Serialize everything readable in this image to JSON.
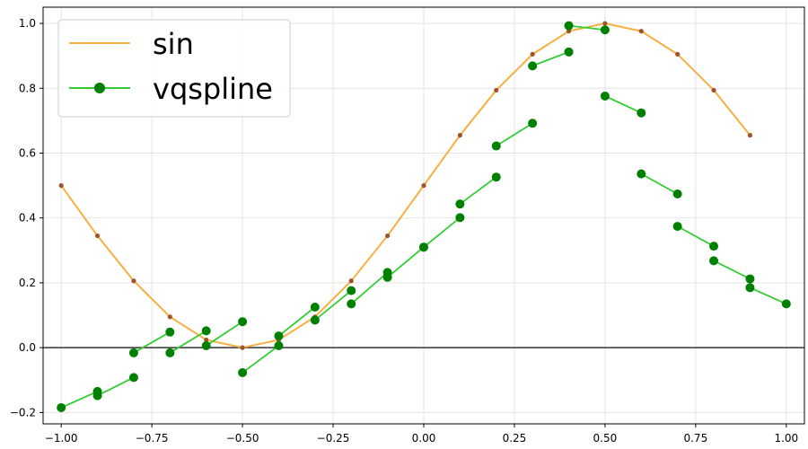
{
  "chart_data": {
    "type": "line",
    "title": "",
    "xlabel": "",
    "ylabel": "",
    "xlim": [
      -1.05,
      1.05
    ],
    "ylim": [
      -0.235,
      1.05
    ],
    "grid": true,
    "legend": {
      "placement": "top-left"
    },
    "xticks": [
      -1.0,
      -0.75,
      -0.5,
      -0.25,
      0.0,
      0.25,
      0.5,
      0.75,
      1.0
    ],
    "xtick_labels": [
      "−1.00",
      "−0.75",
      "−0.50",
      "−0.25",
      "0.00",
      "0.25",
      "0.50",
      "0.75",
      "1.00"
    ],
    "yticks": [
      -0.2,
      0.0,
      0.2,
      0.4,
      0.6,
      0.8,
      1.0
    ],
    "ytick_labels": [
      "−0.2",
      "0.0",
      "0.2",
      "0.4",
      "0.6",
      "0.8",
      "1.0"
    ],
    "hline": {
      "y": 0.0,
      "color": "#333333"
    },
    "series": [
      {
        "name": "sin",
        "color": "#f5b041",
        "marker_color": "#a0522d",
        "x": [
          -1.0,
          -0.9,
          -0.8,
          -0.7,
          -0.6,
          -0.5,
          -0.4,
          -0.3,
          -0.2,
          -0.1,
          0.0,
          0.1,
          0.2,
          0.3,
          0.4,
          0.5,
          0.6,
          0.7,
          0.8,
          0.9
        ],
        "y": [
          0.5,
          0.345,
          0.206,
          0.095,
          0.024,
          0.0,
          0.024,
          0.095,
          0.206,
          0.345,
          0.5,
          0.655,
          0.794,
          0.905,
          0.976,
          1.0,
          0.976,
          0.905,
          0.794,
          0.655
        ]
      },
      {
        "name": "vqspline",
        "color": "#32cd32",
        "marker_color": "#008000",
        "segments": [
          [
            [
              -1.0,
              -0.185
            ],
            [
              -0.9,
              -0.135
            ]
          ],
          [
            [
              -0.9,
              -0.148
            ],
            [
              -0.8,
              -0.092
            ]
          ],
          [
            [
              -0.8,
              -0.016
            ],
            [
              -0.7,
              0.048
            ]
          ],
          [
            [
              -0.7,
              -0.016
            ],
            [
              -0.6,
              0.052
            ]
          ],
          [
            [
              -0.6,
              0.006
            ],
            [
              -0.5,
              0.08
            ]
          ],
          [
            [
              -0.5,
              -0.077
            ],
            [
              -0.4,
              0.006
            ]
          ],
          [
            [
              -0.4,
              0.036
            ],
            [
              -0.3,
              0.125
            ]
          ],
          [
            [
              -0.3,
              0.085
            ],
            [
              -0.2,
              0.176
            ]
          ],
          [
            [
              -0.2,
              0.135
            ],
            [
              -0.1,
              0.232
            ]
          ],
          [
            [
              -0.1,
              0.217
            ],
            [
              0.0,
              0.31
            ]
          ],
          [
            [
              0.0,
              0.31
            ],
            [
              0.1,
              0.401
            ]
          ],
          [
            [
              0.1,
              0.443
            ],
            [
              0.2,
              0.526
            ]
          ],
          [
            [
              0.2,
              0.622
            ],
            [
              0.3,
              0.692
            ]
          ],
          [
            [
              0.3,
              0.869
            ],
            [
              0.4,
              0.912
            ]
          ],
          [
            [
              0.4,
              0.993
            ],
            [
              0.5,
              0.98
            ]
          ],
          [
            [
              0.5,
              0.776
            ],
            [
              0.6,
              0.724
            ]
          ],
          [
            [
              0.6,
              0.536
            ],
            [
              0.7,
              0.474
            ]
          ],
          [
            [
              0.7,
              0.374
            ],
            [
              0.8,
              0.313
            ]
          ],
          [
            [
              0.8,
              0.268
            ],
            [
              0.9,
              0.212
            ]
          ],
          [
            [
              0.9,
              0.185
            ],
            [
              1.0,
              0.135
            ]
          ]
        ]
      }
    ]
  }
}
